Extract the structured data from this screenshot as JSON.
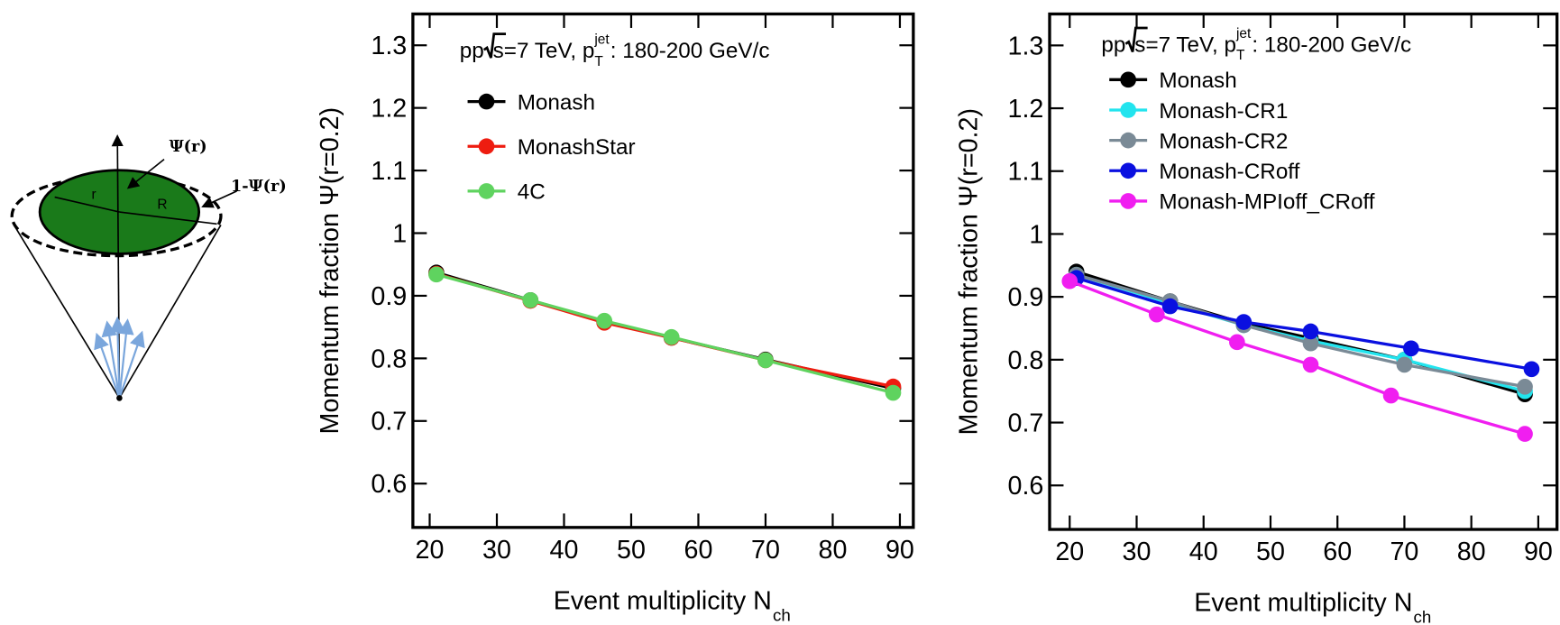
{
  "diagram": {
    "labels": {
      "psi": "Ψ(r)",
      "one_minus_psi": "1-Ψ(r)",
      "r": "r",
      "R": "R"
    }
  },
  "chart_data": [
    {
      "type": "line",
      "annotation": {
        "pre": "pp ",
        "sqrt": "s",
        "mid": "=7 TeV, p",
        "sup": "jet",
        "sub": "T",
        "post": ": 180-200 GeV/c"
      },
      "ylabel": "Momentum fraction Ψ(r=0.2)",
      "xlabel": {
        "text": "Event multiplicity N",
        "sub": "ch"
      },
      "xlim": [
        17.5,
        92
      ],
      "xticks": [
        20,
        30,
        40,
        50,
        60,
        70,
        80,
        90
      ],
      "ylim": [
        0.53,
        1.35
      ],
      "yticks": [
        0.6,
        0.7,
        0.8,
        0.9,
        1,
        1.1,
        1.2,
        1.3
      ],
      "series": [
        {
          "name": "Monash",
          "color": "#000000",
          "x": [
            21,
            35,
            46,
            56,
            70,
            89
          ],
          "values": [
            0.937,
            0.893,
            0.858,
            0.833,
            0.798,
            0.752
          ]
        },
        {
          "name": "MonashStar",
          "color": "#ee1c10",
          "x": [
            21,
            35,
            46,
            56,
            70,
            89
          ],
          "values": [
            0.935,
            0.892,
            0.857,
            0.833,
            0.797,
            0.755
          ]
        },
        {
          "name": "4C",
          "color": "#5fd35f",
          "x": [
            21,
            35,
            46,
            56,
            70,
            89
          ],
          "values": [
            0.934,
            0.893,
            0.86,
            0.834,
            0.797,
            0.745
          ]
        }
      ]
    },
    {
      "type": "line",
      "annotation": {
        "pre": "pp ",
        "sqrt": "s",
        "mid": "=7 TeV, p",
        "sup": "jet",
        "sub": "T",
        "post": ": 180-200 GeV/c"
      },
      "ylabel": "Momentum fraction Ψ(r=0.2)",
      "xlabel": {
        "text": "Event multiplicity N",
        "sub": "ch"
      },
      "xlim": [
        17,
        92.8
      ],
      "xticks": [
        20,
        30,
        40,
        50,
        60,
        70,
        80,
        90
      ],
      "ylim": [
        0.53,
        1.35
      ],
      "yticks": [
        0.6,
        0.7,
        0.8,
        0.9,
        1,
        1.1,
        1.2,
        1.3
      ],
      "series": [
        {
          "name": "Monash",
          "color": "#000000",
          "x": [
            21,
            35,
            46,
            56,
            70,
            88
          ],
          "values": [
            0.94,
            0.893,
            0.858,
            0.834,
            0.8,
            0.745
          ]
        },
        {
          "name": "Monash-CR1",
          "color": "#22e4ee",
          "x": [
            21,
            35,
            46,
            56,
            70,
            88
          ],
          "values": [
            0.935,
            0.89,
            0.855,
            0.83,
            0.8,
            0.75
          ]
        },
        {
          "name": "Monash-CR2",
          "color": "#7a8a96",
          "x": [
            21,
            35,
            46,
            56,
            70,
            88
          ],
          "values": [
            0.935,
            0.893,
            0.855,
            0.826,
            0.792,
            0.757
          ]
        },
        {
          "name": "Monash-CRoff",
          "color": "#0a10e0",
          "x": [
            21,
            35,
            46,
            56,
            71,
            89
          ],
          "values": [
            0.93,
            0.885,
            0.86,
            0.845,
            0.818,
            0.785
          ]
        },
        {
          "name": "Monash-MPIoff_CRoff",
          "color": "#f01ef0",
          "x": [
            20,
            33,
            45,
            56,
            68,
            88
          ],
          "values": [
            0.925,
            0.872,
            0.828,
            0.792,
            0.743,
            0.682
          ]
        }
      ]
    }
  ]
}
